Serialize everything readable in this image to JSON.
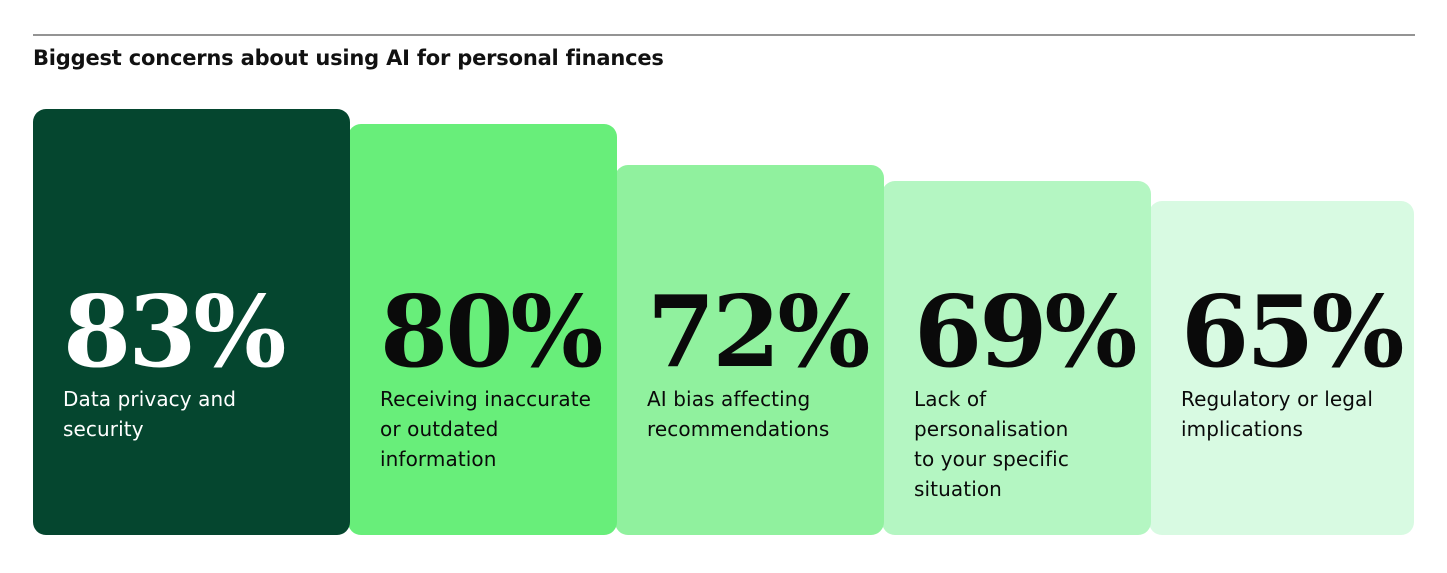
{
  "header": {
    "title": "Biggest concerns about using AI for personal finances"
  },
  "chart_data": {
    "type": "bar",
    "title": "Biggest concerns about using AI for personal finances",
    "orientation": "vertical",
    "unit": "%",
    "categories": [
      "Data privacy and security",
      "Receiving inaccurate or outdated information",
      "AI bias affecting recommendations",
      "Lack of personalisation to your specific situation",
      "Regulatory or legal implications"
    ],
    "values": [
      83,
      80,
      72,
      69,
      65
    ],
    "bar_colors": [
      "#05462f",
      "#68ee7a",
      "#90f19e",
      "#b4f6c2",
      "#d8fae2"
    ],
    "text_colors": [
      "#ffffff",
      "#0a0a0a",
      "#0a0a0a",
      "#0a0a0a",
      "#0a0a0a"
    ],
    "divider_color": "#949494",
    "axes_visible": false,
    "grid": false,
    "legend": false,
    "value_labels_shown": true
  },
  "bars": [
    {
      "value_label": "83%",
      "label": "Data privacy and\nsecurity"
    },
    {
      "value_label": "80%",
      "label": "Receiving inaccurate\nor outdated\ninformation"
    },
    {
      "value_label": "72%",
      "label": "AI bias affecting\nrecommendations"
    },
    {
      "value_label": "69%",
      "label": "Lack of\npersonalisation\nto your specific\nsituation"
    },
    {
      "value_label": "65%",
      "label": "Regulatory or legal\nimplications"
    }
  ]
}
